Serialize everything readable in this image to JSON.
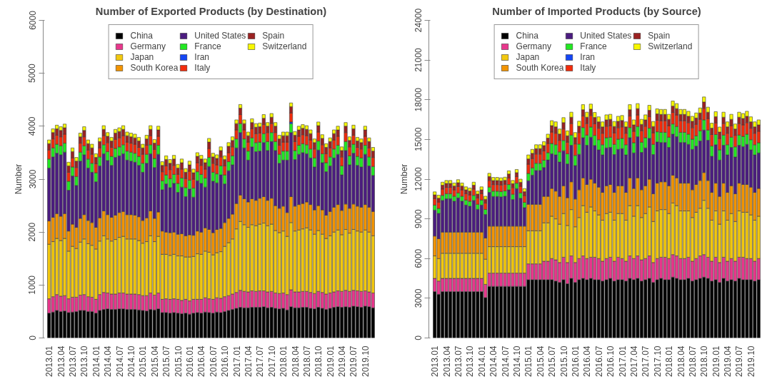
{
  "chart_data": [
    {
      "type": "bar",
      "title": "Number of Exported Products (by Destination)",
      "ylabel": "Number",
      "stacked": true,
      "legend": "top",
      "ylim": [
        0,
        6000
      ],
      "yticks": [
        0,
        1000,
        2000,
        3000,
        4000,
        5000,
        6000
      ],
      "categories": [
        "2013.01",
        null,
        null,
        "2013.04",
        null,
        null,
        "2013.07",
        null,
        null,
        "2013.10",
        null,
        null,
        "2014.01",
        null,
        null,
        "2014.04",
        null,
        null,
        "2014.07",
        null,
        null,
        "2014.10",
        null,
        null,
        "2015.01",
        null,
        null,
        "2015.04",
        null,
        null,
        "2015.07",
        null,
        null,
        "2015.10",
        null,
        null,
        "2016.01",
        null,
        null,
        "2016.04",
        null,
        null,
        "2016.07",
        null,
        null,
        "2016.10",
        null,
        null,
        "2017.01",
        null,
        null,
        "2017.04",
        null,
        null,
        "2017.07",
        null,
        null,
        "2017.10",
        null,
        null,
        "2018.01",
        null,
        null,
        "2018.04",
        null,
        null,
        "2018.07",
        null,
        null,
        "2018.10",
        null,
        null,
        "2019.01",
        null,
        null,
        "2019.04",
        null,
        null,
        "2019.07",
        null,
        null,
        "2019.10",
        null,
        null
      ],
      "series": [
        {
          "name": "China",
          "color": "#000000",
          "values": [
            470,
            490,
            520,
            500,
            510,
            480,
            490,
            500,
            520,
            520,
            500,
            500,
            470,
            520,
            540,
            550,
            540,
            540,
            550,
            550,
            540,
            540,
            540,
            530,
            520,
            510,
            540,
            530,
            550,
            480,
            480,
            470,
            480,
            470,
            460,
            470,
            450,
            470,
            480,
            470,
            490,
            480,
            470,
            490,
            480,
            500,
            520,
            540,
            560,
            580,
            570,
            570,
            580,
            580,
            580,
            590,
            570,
            580,
            560,
            550,
            560,
            530,
            590,
            570,
            570,
            580,
            580,
            560,
            550,
            580,
            560,
            540,
            560,
            580,
            590,
            580,
            590,
            580,
            600,
            590,
            580,
            600,
            590,
            570
          ]
        },
        {
          "name": "Germany",
          "color": "#e8378c",
          "values": [
            270,
            290,
            300,
            290,
            290,
            260,
            280,
            270,
            290,
            300,
            280,
            270,
            260,
            300,
            320,
            300,
            290,
            290,
            300,
            300,
            290,
            290,
            290,
            290,
            280,
            290,
            310,
            280,
            300,
            250,
            260,
            260,
            260,
            260,
            250,
            260,
            250,
            260,
            250,
            260,
            270,
            260,
            260,
            270,
            270,
            280,
            280,
            290,
            300,
            320,
            310,
            300,
            310,
            300,
            310,
            300,
            300,
            300,
            290,
            290,
            290,
            290,
            320,
            300,
            300,
            300,
            300,
            300,
            290,
            300,
            300,
            290,
            290,
            290,
            300,
            300,
            310,
            300,
            300,
            300,
            300,
            290,
            280,
            280
          ]
        },
        {
          "name": "Japan",
          "color": "#f2c80f",
          "values": [
            1030,
            1040,
            1060,
            1050,
            1080,
            900,
            960,
            920,
            1000,
            1050,
            1000,
            980,
            950,
            1010,
            1070,
            1020,
            1000,
            1030,
            1050,
            1070,
            1040,
            1040,
            1040,
            1020,
            990,
            1020,
            1080,
            1010,
            1070,
            850,
            840,
            830,
            840,
            820,
            840,
            800,
            830,
            810,
            860,
            850,
            880,
            880,
            840,
            850,
            880,
            950,
            1000,
            1040,
            1200,
            1300,
            1260,
            1220,
            1250,
            1240,
            1260,
            1280,
            1250,
            1270,
            1180,
            1150,
            1170,
            1100,
            1270,
            1150,
            1170,
            1180,
            1200,
            1180,
            1120,
            1150,
            1100,
            1050,
            1080,
            1130,
            1150,
            1070,
            1150,
            1100,
            1150,
            1130,
            1120,
            1150,
            1130,
            1080
          ]
        },
        {
          "name": "South Korea",
          "color": "#f29400",
          "values": [
            440,
            460,
            470,
            460,
            470,
            380,
            420,
            400,
            450,
            460,
            440,
            430,
            410,
            440,
            470,
            460,
            450,
            460,
            470,
            470,
            460,
            460,
            450,
            450,
            430,
            450,
            470,
            440,
            460,
            440,
            420,
            430,
            420,
            410,
            420,
            400,
            420,
            400,
            430,
            420,
            440,
            430,
            420,
            440,
            440,
            450,
            460,
            470,
            480,
            500,
            490,
            480,
            490,
            480,
            490,
            500,
            480,
            490,
            470,
            460,
            470,
            450,
            490,
            470,
            480,
            480,
            490,
            480,
            460,
            470,
            460,
            440,
            460,
            470,
            480,
            460,
            480,
            470,
            480,
            470,
            470,
            480,
            470,
            460
          ]
        },
        {
          "name": "United States",
          "color": "#4b1c80",
          "values": [
            1000,
            1140,
            1140,
            1160,
            1160,
            770,
            910,
            790,
            1080,
            1130,
            990,
            950,
            860,
            980,
            1080,
            1020,
            980,
            1090,
            1070,
            1090,
            1030,
            1010,
            1000,
            970,
            910,
            1030,
            1080,
            960,
            1090,
            780,
            910,
            850,
            920,
            790,
            880,
            740,
            860,
            720,
            950,
            920,
            770,
            1190,
            970,
            880,
            1010,
            730,
            900,
            930,
            1050,
            1180,
            960,
            790,
            980,
            920,
            890,
            1020,
            940,
            1070,
            1040,
            850,
            870,
            990,
            1210,
            880,
            950,
            960,
            910,
            880,
            810,
            1050,
            890,
            820,
            860,
            930,
            950,
            670,
            1010,
            820,
            960,
            770,
            760,
            950,
            780,
            680
          ]
        },
        {
          "name": "France",
          "color": "#22e822",
          "values": [
            170,
            170,
            170,
            170,
            170,
            170,
            170,
            170,
            170,
            170,
            170,
            170,
            170,
            170,
            170,
            170,
            170,
            170,
            170,
            170,
            170,
            170,
            170,
            170,
            170,
            170,
            170,
            170,
            170,
            170,
            170,
            170,
            170,
            170,
            170,
            170,
            170,
            170,
            170,
            170,
            170,
            170,
            170,
            170,
            170,
            170,
            170,
            170,
            170,
            170,
            170,
            170,
            170,
            170,
            170,
            170,
            170,
            170,
            170,
            170,
            170,
            170,
            170,
            170,
            170,
            170,
            170,
            170,
            170,
            170,
            170,
            170,
            170,
            170,
            170,
            170,
            170,
            170,
            170,
            170,
            170,
            170,
            170,
            170
          ]
        },
        {
          "name": "Iran",
          "color": "#1446f5",
          "values": [
            null,
            null,
            null,
            null,
            null,
            null,
            null,
            null,
            null,
            null,
            null,
            null,
            null,
            null,
            null,
            null,
            null,
            null,
            null,
            null,
            null,
            null,
            null,
            null,
            null,
            null,
            null,
            null,
            null,
            null,
            null,
            null,
            null,
            null,
            null,
            null,
            null,
            null,
            null,
            null,
            null,
            null,
            null,
            null,
            null,
            null,
            null,
            null,
            null,
            null,
            null,
            null,
            null,
            null,
            null,
            null,
            null,
            null,
            null,
            null,
            null,
            null,
            30,
            null,
            null,
            null,
            null,
            null,
            null,
            null,
            null,
            null,
            null,
            null,
            null,
            null,
            null,
            null,
            null,
            null,
            null,
            null,
            null,
            null
          ]
        },
        {
          "name": "Italy",
          "color": "#f22c0c",
          "values": [
            170,
            170,
            170,
            170,
            170,
            170,
            170,
            170,
            170,
            170,
            170,
            170,
            170,
            170,
            170,
            170,
            170,
            170,
            170,
            170,
            170,
            170,
            170,
            170,
            170,
            170,
            170,
            170,
            170,
            170,
            170,
            170,
            170,
            170,
            170,
            170,
            170,
            170,
            170,
            170,
            170,
            170,
            170,
            170,
            170,
            170,
            170,
            170,
            170,
            170,
            170,
            170,
            170,
            170,
            170,
            170,
            170,
            170,
            170,
            170,
            170,
            170,
            170,
            170,
            170,
            170,
            170,
            170,
            170,
            170,
            170,
            170,
            170,
            170,
            170,
            170,
            170,
            170,
            170,
            170,
            170,
            170,
            170,
            170
          ]
        },
        {
          "name": "Spain",
          "color": "#9b2222",
          "values": [
            120,
            120,
            120,
            120,
            120,
            120,
            120,
            120,
            120,
            120,
            120,
            120,
            120,
            120,
            120,
            120,
            120,
            120,
            120,
            120,
            120,
            120,
            120,
            120,
            120,
            120,
            120,
            120,
            120,
            120,
            120,
            120,
            120,
            120,
            120,
            120,
            120,
            120,
            120,
            120,
            120,
            120,
            120,
            120,
            120,
            120,
            120,
            120,
            120,
            120,
            120,
            120,
            120,
            120,
            120,
            120,
            120,
            120,
            120,
            120,
            120,
            120,
            120,
            120,
            120,
            120,
            120,
            120,
            120,
            120,
            120,
            120,
            120,
            120,
            120,
            120,
            120,
            120,
            120,
            120,
            120,
            120,
            120,
            120
          ]
        },
        {
          "name": "Switzerland",
          "color": "#f7f700",
          "values": [
            70,
            70,
            70,
            70,
            70,
            70,
            70,
            70,
            70,
            70,
            70,
            70,
            70,
            70,
            70,
            70,
            70,
            70,
            70,
            70,
            70,
            70,
            70,
            70,
            70,
            70,
            70,
            70,
            70,
            70,
            70,
            70,
            70,
            70,
            70,
            70,
            70,
            70,
            70,
            70,
            70,
            70,
            70,
            70,
            70,
            70,
            70,
            70,
            70,
            70,
            70,
            70,
            70,
            70,
            70,
            70,
            70,
            70,
            70,
            70,
            70,
            70,
            70,
            70,
            70,
            70,
            70,
            70,
            70,
            70,
            70,
            70,
            70,
            70,
            70,
            70,
            70,
            70,
            70,
            70,
            70,
            70,
            70,
            70
          ]
        }
      ]
    },
    {
      "type": "bar",
      "title": "Number of Imported Products (by Source)",
      "ylabel": "Number",
      "stacked": true,
      "legend": "top",
      "ylim": [
        0,
        24000
      ],
      "yticks": [
        0,
        3000,
        6000,
        9000,
        12000,
        15000,
        18000,
        21000,
        24000
      ],
      "categories": [
        "2013.01",
        null,
        null,
        "2013.04",
        null,
        null,
        "2013.07",
        null,
        null,
        "2013.10",
        null,
        null,
        "2014.01",
        null,
        null,
        "2014.04",
        null,
        null,
        "2014.07",
        null,
        null,
        "2014.10",
        null,
        null,
        "2015.01",
        null,
        null,
        "2015.04",
        null,
        null,
        "2015.07",
        null,
        null,
        "2015.10",
        null,
        null,
        "2016.01",
        null,
        null,
        "2016.04",
        null,
        null,
        "2016.07",
        null,
        null,
        "2016.10",
        null,
        null,
        "2017.01",
        null,
        null,
        "2017.04",
        null,
        null,
        "2017.07",
        null,
        null,
        "2017.10",
        null,
        null,
        "2018.01",
        null,
        null,
        "2018.04",
        null,
        null,
        "2018.07",
        null,
        null,
        "2018.10",
        null,
        null,
        "2019.01",
        null,
        null,
        "2019.04",
        null,
        null,
        "2019.07",
        null,
        null,
        "2019.10",
        null,
        null
      ],
      "series": [
        {
          "name": "China",
          "color": "#000000",
          "values": [
            3500,
            3300,
            3500,
            3500,
            3500,
            3500,
            3500,
            3500,
            3500,
            3500,
            3500,
            3500,
            3500,
            3050,
            3900,
            3900,
            3900,
            3900,
            3900,
            3900,
            3900,
            3900,
            3900,
            3900,
            4400,
            4400,
            4400,
            4400,
            4400,
            4400,
            4400,
            4300,
            4200,
            4400,
            4100,
            4500,
            4200,
            4400,
            4500,
            4400,
            4500,
            4400,
            4400,
            4300,
            4400,
            4500,
            4300,
            4400,
            4400,
            4300,
            4500,
            4400,
            4500,
            4300,
            4400,
            4500,
            4200,
            4400,
            4500,
            4400,
            4400,
            4600,
            4500,
            4400,
            4400,
            4500,
            4300,
            4400,
            4500,
            4600,
            4500,
            4300,
            4400,
            4200,
            4500,
            4300,
            4400,
            4300,
            4500,
            4400,
            4400,
            4400,
            4300,
            4400
          ]
        },
        {
          "name": "Germany",
          "color": "#e8378c",
          "values": [
            1000,
            1000,
            1000,
            1000,
            1000,
            1000,
            1000,
            1000,
            1000,
            1000,
            1000,
            1000,
            1000,
            1000,
            1000,
            1000,
            1000,
            1000,
            1000,
            1000,
            1000,
            1000,
            1000,
            1000,
            1200,
            1200,
            1200,
            1200,
            1400,
            1400,
            1600,
            1600,
            1500,
            1700,
            1600,
            1700,
            1500,
            1600,
            1700,
            1600,
            1600,
            1700,
            1600,
            1500,
            1600,
            1600,
            1500,
            1700,
            1600,
            1500,
            1700,
            1600,
            1700,
            1600,
            1600,
            1700,
            1500,
            1600,
            1600,
            1700,
            1600,
            1700,
            1700,
            1600,
            1600,
            1600,
            1500,
            1600,
            1700,
            1700,
            1600,
            1500,
            1700,
            1500,
            1600,
            1500,
            1600,
            1500,
            1600,
            1700,
            1600,
            1600,
            1500,
            1600
          ]
        },
        {
          "name": "Japan",
          "color": "#f2c80f",
          "values": [
            1700,
            1700,
            1900,
            1900,
            1900,
            1900,
            1900,
            1900,
            1900,
            1900,
            1900,
            1900,
            1900,
            1900,
            2000,
            2000,
            2000,
            2000,
            2000,
            2000,
            2000,
            2000,
            2000,
            2000,
            2500,
            2500,
            2500,
            2500,
            2900,
            2900,
            3200,
            3100,
            2900,
            3300,
            2800,
            3500,
            2700,
            3100,
            3800,
            3500,
            3800,
            3500,
            3300,
            3100,
            3400,
            3400,
            3100,
            3300,
            3400,
            3100,
            3800,
            3200,
            3800,
            3200,
            3400,
            3700,
            3100,
            3600,
            3600,
            3600,
            3400,
            3900,
            3800,
            3600,
            3600,
            3500,
            3300,
            3500,
            3600,
            4100,
            3700,
            3100,
            3500,
            2900,
            3500,
            3100,
            3400,
            3000,
            3500,
            3400,
            3500,
            3300,
            3100,
            3200
          ]
        },
        {
          "name": "South Korea",
          "color": "#f29400",
          "values": [
            1500,
            1500,
            1600,
            1600,
            1600,
            1600,
            1600,
            1600,
            1600,
            1600,
            1600,
            1600,
            1600,
            1600,
            1550,
            1550,
            1550,
            1550,
            1550,
            1550,
            1550,
            1550,
            1550,
            1550,
            2000,
            2000,
            2000,
            2000,
            2000,
            2000,
            2100,
            2100,
            2100,
            2100,
            2100,
            2100,
            2100,
            2100,
            2100,
            2100,
            2100,
            2100,
            2100,
            2100,
            2100,
            2100,
            2100,
            2100,
            2100,
            2100,
            2100,
            2100,
            2100,
            2100,
            2100,
            2100,
            2100,
            2100,
            2100,
            2100,
            2100,
            2100,
            2100,
            2100,
            2100,
            2100,
            2100,
            2100,
            2100,
            2100,
            2100,
            2100,
            2100,
            2100,
            2100,
            2100,
            2100,
            2100,
            2100,
            2100,
            2100,
            2100,
            2100,
            2100
          ]
        },
        {
          "name": "United States",
          "color": "#4b1c80",
          "values": [
            1960,
            1910,
            2390,
            2520,
            2520,
            2330,
            2580,
            2330,
            2040,
            1950,
            2390,
            1720,
            2040,
            1780,
            2550,
            2240,
            2240,
            2210,
            2260,
            2740,
            2010,
            2840,
            2110,
            1400,
            1780,
            2200,
            2550,
            2550,
            2180,
            2750,
            2620,
            2730,
            2590,
            2650,
            2550,
            2760,
            2520,
            2680,
            3030,
            2960,
            3170,
            2840,
            2810,
            2830,
            2860,
            2800,
            2860,
            2750,
            2810,
            2830,
            3030,
            2680,
            3110,
            2820,
            2860,
            3080,
            2960,
            3110,
            2970,
            2970,
            2900,
            3100,
            3110,
            3070,
            3070,
            2930,
            3050,
            2900,
            2980,
            3210,
            3040,
            2730,
            2900,
            2740,
            2860,
            2830,
            2900,
            2770,
            2860,
            2860,
            3030,
            2810,
            2830,
            2680
          ]
        },
        {
          "name": "France",
          "color": "#22e822",
          "values": [
            380,
            380,
            380,
            380,
            380,
            380,
            380,
            380,
            380,
            380,
            380,
            380,
            380,
            380,
            400,
            400,
            400,
            400,
            400,
            400,
            400,
            400,
            400,
            400,
            550,
            550,
            550,
            550,
            550,
            550,
            770,
            770,
            770,
            770,
            770,
            770,
            770,
            770,
            770,
            770,
            770,
            770,
            770,
            770,
            770,
            770,
            770,
            770,
            770,
            770,
            770,
            770,
            770,
            770,
            770,
            770,
            770,
            770,
            770,
            770,
            770,
            770,
            770,
            770,
            770,
            770,
            770,
            770,
            770,
            770,
            770,
            770,
            770,
            770,
            770,
            770,
            770,
            770,
            770,
            770,
            770,
            770,
            770,
            770
          ]
        },
        {
          "name": "Iran",
          "color": "#1446f5",
          "values": [
            null,
            null,
            null,
            null,
            null,
            null,
            null,
            null,
            null,
            null,
            null,
            null,
            null,
            null,
            null,
            null,
            null,
            null,
            null,
            null,
            null,
            null,
            null,
            null,
            null,
            null,
            null,
            null,
            null,
            null,
            null,
            null,
            null,
            null,
            null,
            null,
            null,
            null,
            null,
            null,
            null,
            null,
            null,
            null,
            null,
            null,
            null,
            null,
            null,
            null,
            null,
            null,
            null,
            null,
            null,
            null,
            null,
            null,
            null,
            null,
            null,
            null,
            null,
            null,
            null,
            null,
            null,
            null,
            null,
            null,
            null,
            null,
            null,
            null,
            null,
            null,
            null,
            null,
            null,
            null,
            null,
            null,
            null,
            null
          ]
        },
        {
          "name": "Italy",
          "color": "#f22c0c",
          "values": [
            480,
            480,
            480,
            480,
            480,
            480,
            480,
            480,
            480,
            480,
            480,
            480,
            480,
            480,
            500,
            500,
            500,
            500,
            500,
            500,
            500,
            500,
            500,
            500,
            700,
            700,
            700,
            700,
            700,
            700,
            870,
            870,
            870,
            870,
            870,
            870,
            870,
            870,
            870,
            870,
            870,
            870,
            870,
            870,
            870,
            870,
            870,
            870,
            870,
            870,
            870,
            870,
            870,
            870,
            870,
            870,
            870,
            870,
            870,
            870,
            870,
            870,
            870,
            870,
            870,
            870,
            870,
            870,
            870,
            870,
            870,
            870,
            870,
            870,
            870,
            870,
            870,
            870,
            870,
            870,
            870,
            870,
            870,
            870
          ]
        },
        {
          "name": "Spain",
          "color": "#9b2222",
          "values": [
            290,
            290,
            290,
            290,
            290,
            290,
            290,
            290,
            290,
            290,
            290,
            290,
            290,
            290,
            300,
            300,
            300,
            300,
            300,
            300,
            300,
            300,
            300,
            300,
            400,
            400,
            400,
            400,
            400,
            400,
            480,
            480,
            480,
            480,
            480,
            480,
            480,
            480,
            480,
            480,
            480,
            480,
            480,
            480,
            480,
            480,
            480,
            480,
            480,
            480,
            480,
            480,
            480,
            480,
            480,
            480,
            480,
            480,
            480,
            480,
            480,
            480,
            480,
            480,
            480,
            480,
            480,
            480,
            480,
            480,
            480,
            480,
            480,
            480,
            480,
            480,
            480,
            480,
            480,
            480,
            480,
            480,
            480,
            480
          ]
        },
        {
          "name": "Switzerland",
          "color": "#f7f700",
          "values": [
            230,
            230,
            230,
            230,
            230,
            230,
            230,
            230,
            230,
            230,
            230,
            230,
            230,
            230,
            240,
            240,
            240,
            240,
            240,
            240,
            240,
            240,
            240,
            240,
            300,
            300,
            300,
            300,
            300,
            300,
            380,
            380,
            380,
            380,
            380,
            380,
            380,
            380,
            380,
            380,
            380,
            380,
            380,
            380,
            380,
            380,
            380,
            380,
            380,
            380,
            380,
            380,
            380,
            380,
            380,
            380,
            380,
            380,
            380,
            380,
            380,
            380,
            380,
            380,
            380,
            380,
            380,
            380,
            380,
            380,
            380,
            380,
            380,
            380,
            380,
            380,
            380,
            380,
            380,
            380,
            380,
            380,
            380,
            380
          ]
        }
      ]
    }
  ]
}
